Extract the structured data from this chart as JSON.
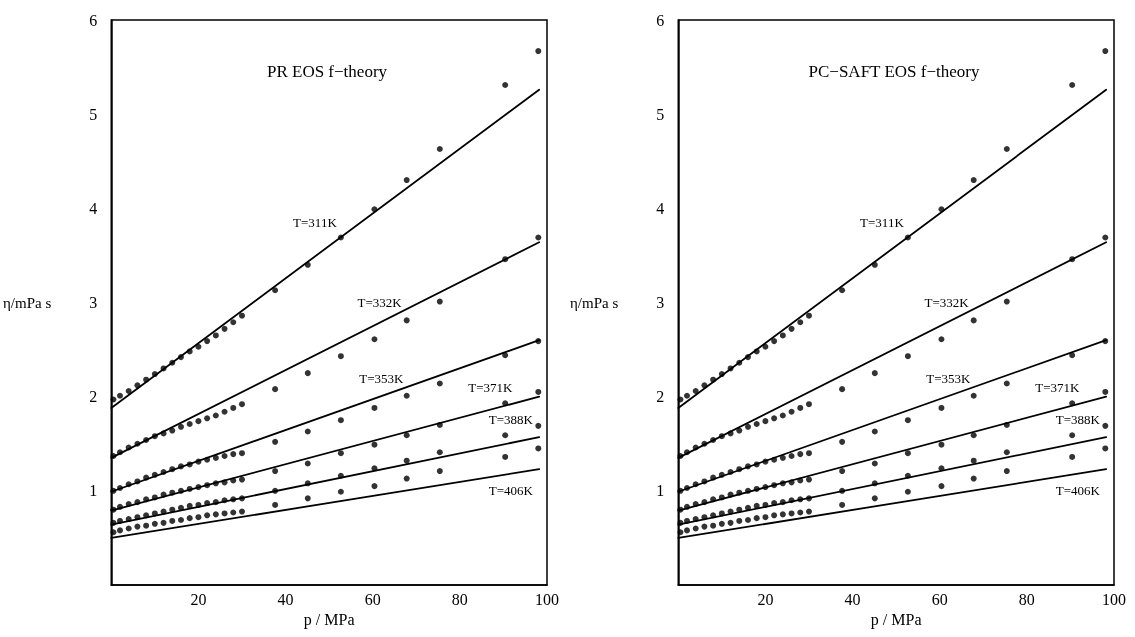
{
  "chart_data": [
    {
      "type": "scatter",
      "title": "PR EOS f−theory",
      "xlabel": "p / MPa",
      "ylabel": "η/mPa s",
      "xlim": [
        0,
        100
      ],
      "xticks": [
        20,
        40,
        60,
        80,
        100
      ],
      "ylim": [
        0,
        6
      ],
      "yticks": [
        1,
        2,
        3,
        4,
        5,
        6
      ],
      "grid": false,
      "series": [
        {
          "type": "line",
          "name": "T=311K",
          "marker": "none",
          "color": "#000000",
          "x": [
            0,
            98.2
          ],
          "values": [
            1.88,
            5.26
          ]
        },
        {
          "marker": "circle",
          "color": "#000000",
          "x": [
            0.5,
            2,
            4,
            6,
            8,
            10,
            12,
            14,
            16,
            18,
            20,
            22,
            24,
            26,
            28,
            30,
            37.6,
            45.1,
            52.7,
            60.4,
            67.8,
            75.4,
            90.4,
            98
          ],
          "values": [
            1.97,
            2.01,
            2.06,
            2.12,
            2.18,
            2.24,
            2.3,
            2.36,
            2.42,
            2.48,
            2.53,
            2.59,
            2.65,
            2.72,
            2.79,
            2.86,
            3.13,
            3.4,
            3.69,
            3.99,
            4.3,
            4.63,
            5.31,
            5.67
          ]
        },
        {
          "type": "line",
          "name": "T=332K",
          "marker": "none",
          "color": "#000000",
          "x": [
            0,
            98.2
          ],
          "values": [
            1.35,
            3.64
          ]
        },
        {
          "marker": "circle",
          "color": "#000000",
          "x": [
            0.5,
            2,
            4,
            6,
            8,
            10,
            12,
            14,
            16,
            18,
            20,
            22,
            24,
            26,
            28,
            30,
            37.6,
            45.1,
            52.7,
            60.4,
            67.8,
            75.4,
            90.4,
            98
          ],
          "values": [
            1.37,
            1.41,
            1.46,
            1.5,
            1.54,
            1.58,
            1.61,
            1.64,
            1.68,
            1.71,
            1.74,
            1.77,
            1.8,
            1.84,
            1.88,
            1.92,
            2.08,
            2.25,
            2.43,
            2.61,
            2.81,
            3.01,
            3.46,
            3.69
          ]
        },
        {
          "type": "line",
          "name": "T=353K",
          "marker": "none",
          "color": "#000000",
          "x": [
            0,
            98.2
          ],
          "values": [
            0.99,
            2.6
          ]
        },
        {
          "marker": "circle",
          "color": "#000000",
          "x": [
            0.5,
            2,
            4,
            6,
            8,
            10,
            12,
            14,
            16,
            18,
            20,
            22,
            24,
            26,
            28,
            30,
            37.6,
            45.1,
            52.7,
            60.4,
            67.8,
            75.4,
            90.4,
            98
          ],
          "values": [
            1,
            1.03,
            1.07,
            1.1,
            1.14,
            1.17,
            1.2,
            1.23,
            1.26,
            1.28,
            1.31,
            1.33,
            1.35,
            1.37,
            1.39,
            1.4,
            1.52,
            1.63,
            1.75,
            1.88,
            2.01,
            2.14,
            2.44,
            2.59
          ]
        },
        {
          "type": "line",
          "name": "T=371K",
          "marker": "none",
          "color": "#000000",
          "x": [
            0,
            98.2
          ],
          "values": [
            0.79,
            2
          ]
        },
        {
          "marker": "circle",
          "color": "#000000",
          "x": [
            0.5,
            2,
            4,
            6,
            8,
            10,
            12,
            14,
            16,
            18,
            20,
            22,
            24,
            26,
            28,
            30,
            37.6,
            45.1,
            52.7,
            60.4,
            67.8,
            75.4,
            90.4,
            98
          ],
          "values": [
            0.8,
            0.83,
            0.86,
            0.88,
            0.91,
            0.93,
            0.96,
            0.98,
            1,
            1.02,
            1.04,
            1.06,
            1.08,
            1.09,
            1.11,
            1.12,
            1.21,
            1.29,
            1.4,
            1.49,
            1.59,
            1.7,
            1.93,
            2.05
          ]
        },
        {
          "type": "line",
          "name": "T=388K",
          "marker": "none",
          "color": "#000000",
          "x": [
            0,
            98.2
          ],
          "values": [
            0.64,
            1.57
          ]
        },
        {
          "marker": "circle",
          "color": "#000000",
          "x": [
            0.5,
            2,
            4,
            6,
            8,
            10,
            12,
            14,
            16,
            18,
            20,
            22,
            24,
            26,
            28,
            30,
            37.6,
            45.1,
            52.7,
            60.4,
            67.8,
            75.4,
            90.4,
            98
          ],
          "values": [
            0.66,
            0.68,
            0.7,
            0.72,
            0.74,
            0.76,
            0.78,
            0.8,
            0.82,
            0.84,
            0.85,
            0.87,
            0.88,
            0.9,
            0.91,
            0.92,
            1,
            1.08,
            1.16,
            1.24,
            1.32,
            1.41,
            1.59,
            1.69
          ]
        },
        {
          "type": "line",
          "name": "T=406K",
          "marker": "none",
          "color": "#000000",
          "x": [
            0,
            98.2
          ],
          "values": [
            0.5,
            1.23
          ]
        },
        {
          "marker": "circle",
          "color": "#000000",
          "x": [
            0.5,
            2,
            4,
            6,
            8,
            10,
            12,
            14,
            16,
            18,
            20,
            22,
            24,
            26,
            28,
            30,
            37.6,
            45.1,
            52.7,
            60.4,
            67.8,
            75.4,
            90.4,
            98
          ],
          "values": [
            0.56,
            0.58,
            0.6,
            0.62,
            0.63,
            0.65,
            0.66,
            0.68,
            0.69,
            0.71,
            0.72,
            0.74,
            0.75,
            0.76,
            0.77,
            0.78,
            0.85,
            0.92,
            0.99,
            1.05,
            1.13,
            1.21,
            1.36,
            1.45
          ]
        }
      ]
    },
    {
      "type": "scatter",
      "title": "PC−SAFT EOS f−theory",
      "xlabel": "p / MPa",
      "ylabel": "η/mPa s",
      "xlim": [
        0,
        100
      ],
      "xticks": [
        20,
        40,
        60,
        80,
        100
      ],
      "ylim": [
        0,
        6
      ],
      "yticks": [
        1,
        2,
        3,
        4,
        5,
        6
      ],
      "grid": false,
      "series": [
        {
          "type": "line",
          "name": "T=311K",
          "marker": "none",
          "color": "#000000",
          "x": [
            0,
            98.2
          ],
          "values": [
            1.88,
            5.26
          ]
        },
        {
          "marker": "circle",
          "color": "#000000",
          "x": [
            0.5,
            2,
            4,
            6,
            8,
            10,
            12,
            14,
            16,
            18,
            20,
            22,
            24,
            26,
            28,
            30,
            37.6,
            45.1,
            52.7,
            60.4,
            67.8,
            75.4,
            90.4,
            98
          ],
          "values": [
            1.97,
            2.01,
            2.06,
            2.12,
            2.18,
            2.24,
            2.3,
            2.36,
            2.42,
            2.48,
            2.53,
            2.59,
            2.65,
            2.72,
            2.79,
            2.86,
            3.13,
            3.4,
            3.69,
            3.99,
            4.3,
            4.63,
            5.31,
            5.67
          ]
        },
        {
          "type": "line",
          "name": "T=332K",
          "marker": "none",
          "color": "#000000",
          "x": [
            0,
            98.2
          ],
          "values": [
            1.35,
            3.64
          ]
        },
        {
          "marker": "circle",
          "color": "#000000",
          "x": [
            0.5,
            2,
            4,
            6,
            8,
            10,
            12,
            14,
            16,
            18,
            20,
            22,
            24,
            26,
            28,
            30,
            37.6,
            45.1,
            52.7,
            60.4,
            67.8,
            75.4,
            90.4,
            98
          ],
          "values": [
            1.37,
            1.41,
            1.46,
            1.5,
            1.54,
            1.58,
            1.61,
            1.64,
            1.68,
            1.71,
            1.74,
            1.77,
            1.8,
            1.84,
            1.88,
            1.92,
            2.08,
            2.25,
            2.43,
            2.61,
            2.81,
            3.01,
            3.46,
            3.69
          ]
        },
        {
          "type": "line",
          "name": "T=353K",
          "marker": "none",
          "color": "#000000",
          "x": [
            0,
            98.2
          ],
          "values": [
            0.99,
            2.6
          ]
        },
        {
          "marker": "circle",
          "color": "#000000",
          "x": [
            0.5,
            2,
            4,
            6,
            8,
            10,
            12,
            14,
            16,
            18,
            20,
            22,
            24,
            26,
            28,
            30,
            37.6,
            45.1,
            52.7,
            60.4,
            67.8,
            75.4,
            90.4,
            98
          ],
          "values": [
            1,
            1.03,
            1.07,
            1.1,
            1.14,
            1.17,
            1.2,
            1.23,
            1.26,
            1.28,
            1.31,
            1.33,
            1.35,
            1.37,
            1.39,
            1.4,
            1.52,
            1.63,
            1.75,
            1.88,
            2.01,
            2.14,
            2.44,
            2.59
          ]
        },
        {
          "type": "line",
          "name": "T=371K",
          "marker": "none",
          "color": "#000000",
          "x": [
            0,
            98.2
          ],
          "values": [
            0.79,
            2
          ]
        },
        {
          "marker": "circle",
          "color": "#000000",
          "x": [
            0.5,
            2,
            4,
            6,
            8,
            10,
            12,
            14,
            16,
            18,
            20,
            22,
            24,
            26,
            28,
            30,
            37.6,
            45.1,
            52.7,
            60.4,
            67.8,
            75.4,
            90.4,
            98
          ],
          "values": [
            0.8,
            0.83,
            0.86,
            0.88,
            0.91,
            0.93,
            0.96,
            0.98,
            1,
            1.02,
            1.04,
            1.06,
            1.08,
            1.09,
            1.11,
            1.12,
            1.21,
            1.29,
            1.4,
            1.49,
            1.59,
            1.7,
            1.93,
            2.05
          ]
        },
        {
          "type": "line",
          "name": "T=388K",
          "marker": "none",
          "color": "#000000",
          "x": [
            0,
            98.2
          ],
          "values": [
            0.64,
            1.57
          ]
        },
        {
          "marker": "circle",
          "color": "#000000",
          "x": [
            0.5,
            2,
            4,
            6,
            8,
            10,
            12,
            14,
            16,
            18,
            20,
            22,
            24,
            26,
            28,
            30,
            37.6,
            45.1,
            52.7,
            60.4,
            67.8,
            75.4,
            90.4,
            98
          ],
          "values": [
            0.66,
            0.68,
            0.7,
            0.72,
            0.74,
            0.76,
            0.78,
            0.8,
            0.82,
            0.84,
            0.85,
            0.87,
            0.88,
            0.9,
            0.91,
            0.92,
            1,
            1.08,
            1.16,
            1.24,
            1.32,
            1.41,
            1.59,
            1.69
          ]
        },
        {
          "type": "line",
          "name": "T=406K",
          "marker": "none",
          "color": "#000000",
          "x": [
            0,
            98.2
          ],
          "values": [
            0.5,
            1.23
          ]
        },
        {
          "marker": "circle",
          "color": "#000000",
          "x": [
            0.5,
            2,
            4,
            6,
            8,
            10,
            12,
            14,
            16,
            18,
            20,
            22,
            24,
            26,
            28,
            30,
            37.6,
            45.1,
            52.7,
            60.4,
            67.8,
            75.4,
            90.4,
            98
          ],
          "values": [
            0.56,
            0.58,
            0.6,
            0.62,
            0.63,
            0.65,
            0.66,
            0.68,
            0.69,
            0.71,
            0.72,
            0.74,
            0.75,
            0.76,
            0.77,
            0.78,
            0.85,
            0.92,
            0.99,
            1.05,
            1.13,
            1.21,
            1.36,
            1.45
          ]
        }
      ]
    }
  ]
}
